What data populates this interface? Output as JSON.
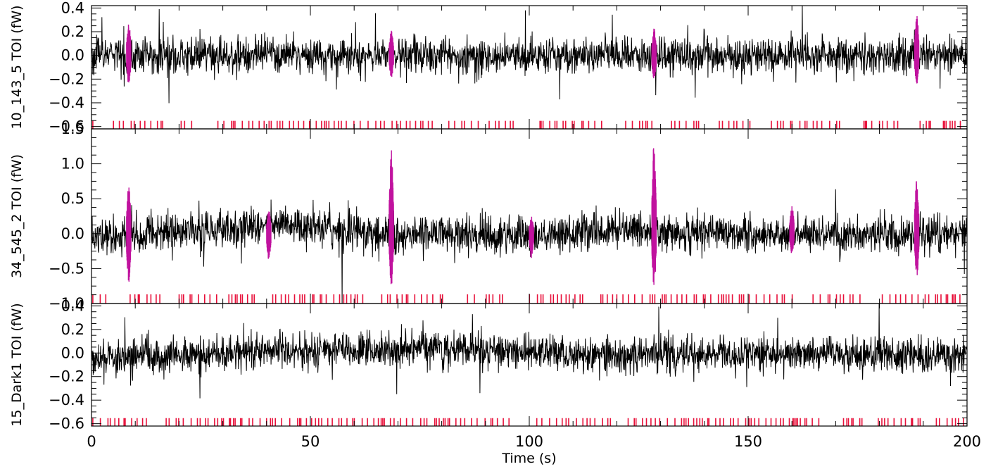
{
  "chart_data": [
    {
      "type": "line",
      "ylabel": "10_143_5 TOI (fW)",
      "xlim": [
        0,
        200
      ],
      "ylim": [
        -0.62,
        0.42
      ],
      "yticks": [
        -0.6,
        -0.4,
        -0.2,
        0.0,
        0.2,
        0.4
      ],
      "ytick_labels": [
        "−0.6",
        "−0.4",
        "−0.2",
        "0.0",
        "0.2",
        "0.4"
      ],
      "series": [
        {
          "role": "signal",
          "color": "#000000",
          "noise_sigma": 0.075,
          "baseline": [
            [
              0,
              0.0
            ],
            [
              200,
              0.0
            ]
          ]
        },
        {
          "role": "flagged",
          "color": "#c0129e",
          "bursts": [
            {
              "x": 8.5,
              "y_range": [
                -0.25,
                0.28
              ]
            },
            {
              "x": 68.5,
              "y_range": [
                -0.2,
                0.22
              ]
            },
            {
              "x": 128.5,
              "y_range": [
                -0.22,
                0.24
              ]
            },
            {
              "x": 188.5,
              "y_range": [
                -0.25,
                0.35
              ]
            }
          ]
        },
        {
          "role": "flag_marks",
          "color": "#e8103a",
          "y": -0.6
        }
      ]
    },
    {
      "type": "line",
      "ylabel": "34_545_2 TOI (fW)",
      "xlim": [
        0,
        200
      ],
      "ylim": [
        -1.0,
        1.5
      ],
      "yticks": [
        -1.0,
        -0.5,
        0.0,
        0.5,
        1.0,
        1.5
      ],
      "ytick_labels": [
        "−1.0",
        "−0.5",
        "0.0",
        "0.5",
        "1.0",
        "1.5"
      ],
      "series": [
        {
          "role": "signal",
          "color": "#000000",
          "noise_sigma": 0.13,
          "baseline": [
            [
              0,
              -0.05
            ],
            [
              45,
              0.12
            ],
            [
              70,
              0.0
            ],
            [
              100,
              -0.05
            ],
            [
              125,
              0.05
            ],
            [
              150,
              -0.02
            ],
            [
              200,
              0.0
            ]
          ]
        },
        {
          "role": "flagged",
          "color": "#c0129e",
          "bursts": [
            {
              "x": 8.5,
              "y_range": [
                -0.72,
                0.7
              ]
            },
            {
              "x": 40.5,
              "y_range": [
                -0.38,
                0.35
              ]
            },
            {
              "x": 68.5,
              "y_range": [
                -0.75,
                1.2
              ]
            },
            {
              "x": 100.5,
              "y_range": [
                -0.35,
                0.25
              ]
            },
            {
              "x": 128.5,
              "y_range": [
                -0.8,
                1.32
              ]
            },
            {
              "x": 160.0,
              "y_range": [
                -0.3,
                0.42
              ]
            },
            {
              "x": 188.5,
              "y_range": [
                -0.65,
                0.78
              ]
            }
          ]
        },
        {
          "role": "flag_marks",
          "color": "#e8103a",
          "y": -0.95
        }
      ]
    },
    {
      "type": "line",
      "ylabel": "15_Dark1 TOI (fW)",
      "xlabel": "Time (s)",
      "xlim": [
        0,
        200
      ],
      "ylim": [
        -0.62,
        0.42
      ],
      "xticks": [
        0,
        50,
        100,
        150,
        200
      ],
      "xtick_labels": [
        "0",
        "50",
        "100",
        "150",
        "200"
      ],
      "yticks": [
        -0.6,
        -0.4,
        -0.2,
        0.0,
        0.2,
        0.4
      ],
      "ytick_labels": [
        "−0.6",
        "−0.4",
        "−0.2",
        "0.0",
        "0.2",
        "0.4"
      ],
      "series": [
        {
          "role": "signal",
          "color": "#000000",
          "noise_sigma": 0.075,
          "baseline": [
            [
              0,
              -0.05
            ],
            [
              40,
              0.02
            ],
            [
              80,
              0.03
            ],
            [
              120,
              -0.02
            ],
            [
              160,
              0.0
            ],
            [
              200,
              -0.03
            ]
          ]
        },
        {
          "role": "flag_marks",
          "color": "#e8103a",
          "y": -0.6
        }
      ]
    }
  ]
}
